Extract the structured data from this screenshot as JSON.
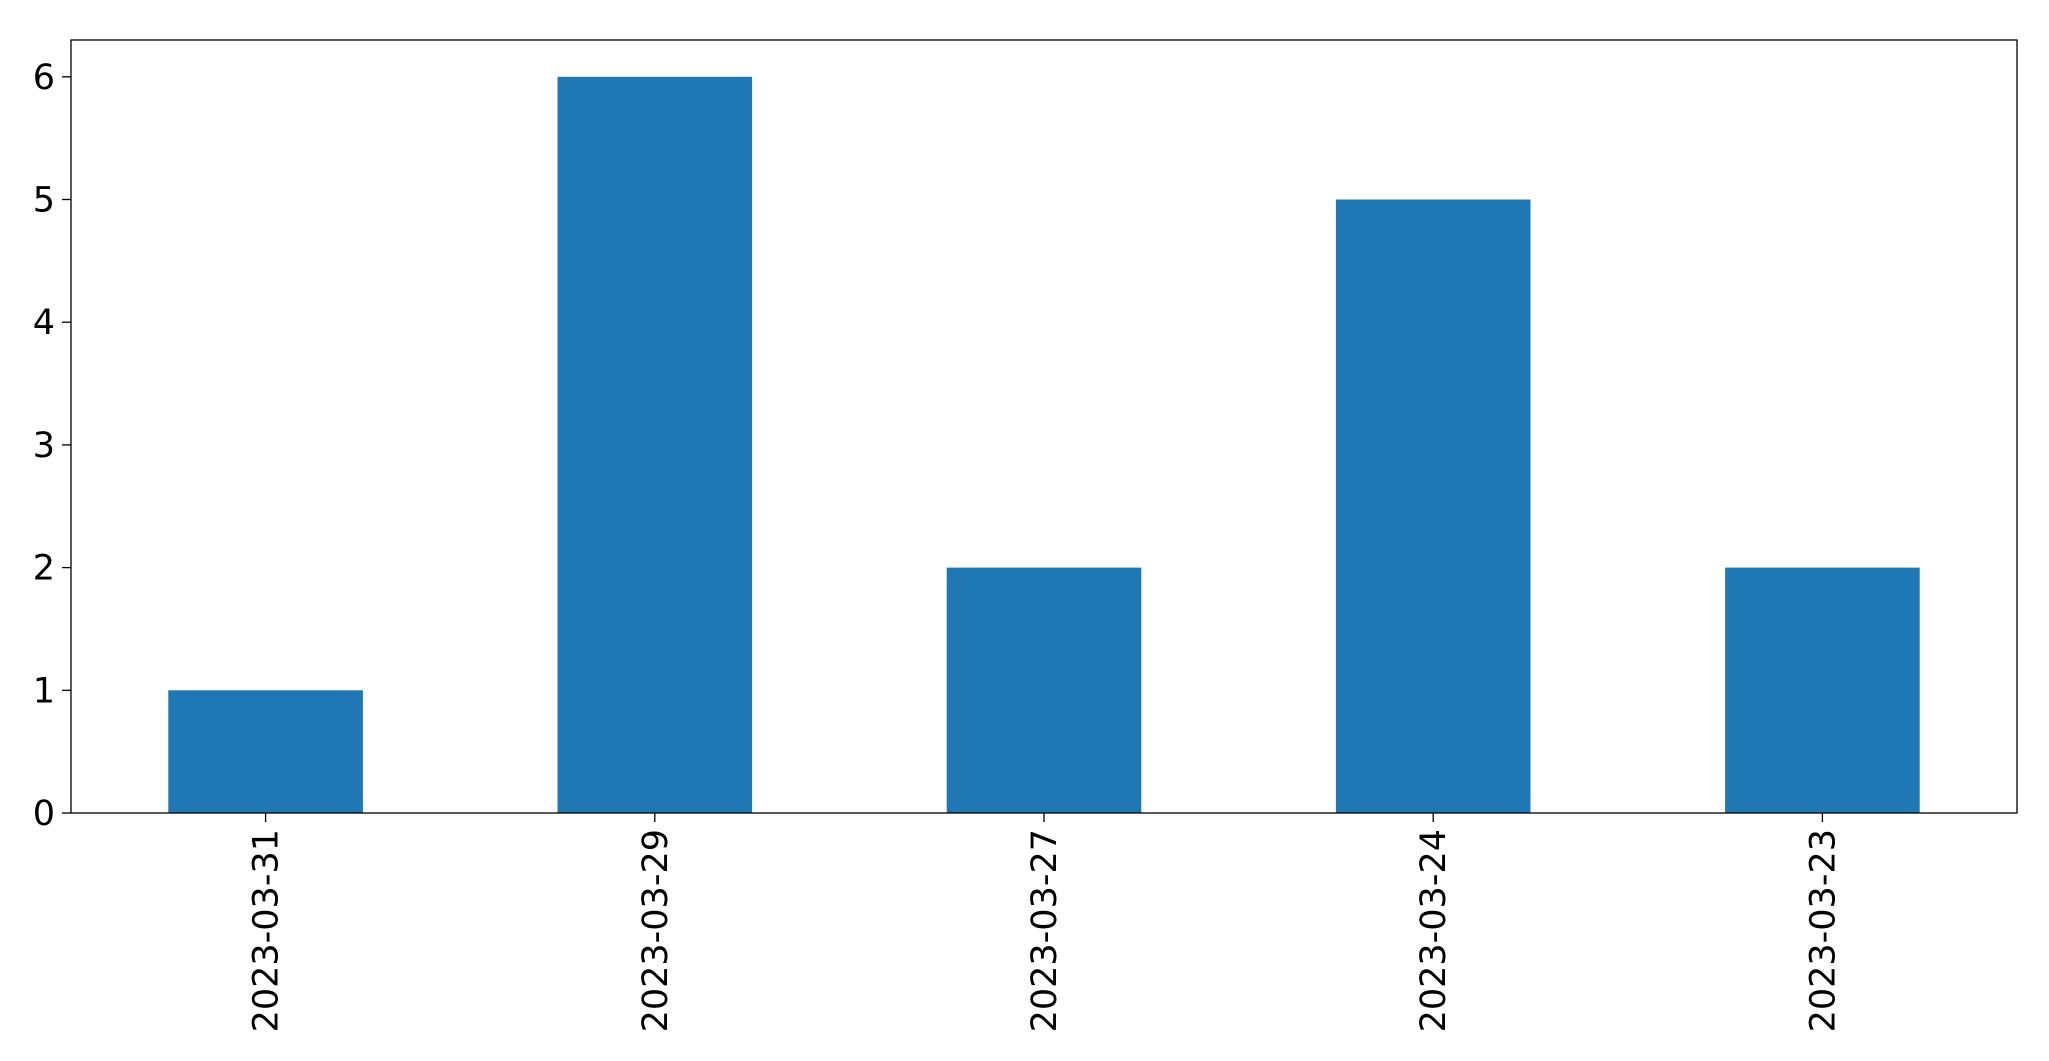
{
  "chart_data": {
    "type": "bar",
    "categories": [
      "2023-03-31",
      "2023-03-29",
      "2023-03-27",
      "2023-03-24",
      "2023-03-23"
    ],
    "values": [
      1,
      6,
      2,
      5,
      2
    ],
    "yticks": [
      "0",
      "1",
      "2",
      "3",
      "4",
      "5",
      "6"
    ],
    "ylim": [
      0,
      6.3
    ],
    "bar_color": "#1f77b4",
    "title": "",
    "xlabel": "",
    "ylabel": "",
    "grid": false,
    "legend": "none"
  }
}
